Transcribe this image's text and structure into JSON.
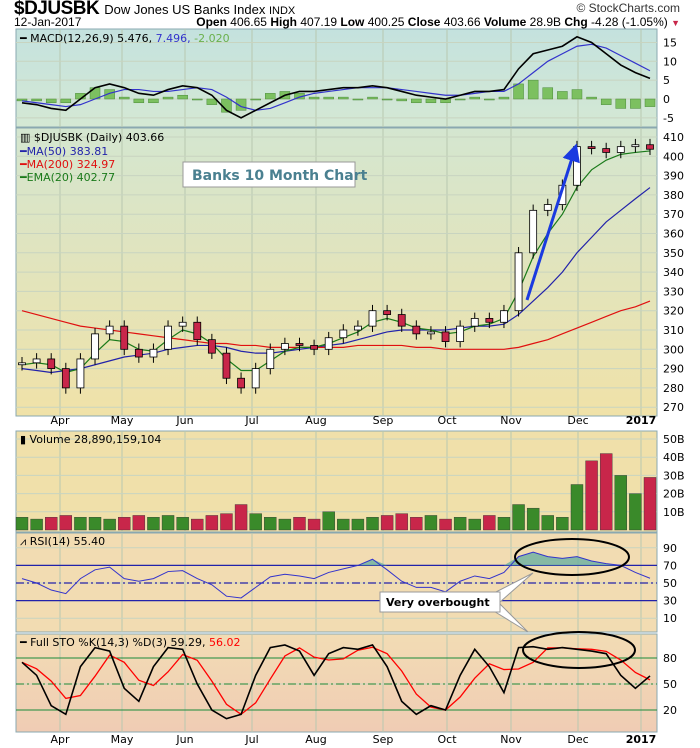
{
  "header": {
    "symbol": "$DJUSBK",
    "name": "Dow Jones US Banks Index",
    "exchange": "INDX",
    "brand": "© StockCharts.com",
    "date": "12-Jan-2017",
    "open_label": "Open",
    "open": "406.65",
    "high_label": "High",
    "high": "407.19",
    "low_label": "Low",
    "low": "400.25",
    "close_label": "Close",
    "close": "403.66",
    "volume_label": "Volume",
    "volume": "28.9B",
    "chg_label": "Chg",
    "chg": "-4.28 (-1.05%)"
  },
  "colors": {
    "up": "#3a8a2a",
    "down": "#c8264a",
    "ma50": "#2222aa",
    "ma200": "#e01010",
    "ema20": "#1a7a1a",
    "macd": "#000000",
    "signal": "#3333cc",
    "rsi": "#3333cc",
    "sto_k": "#000000",
    "sto_d": "#ff0000",
    "arrow": "#1a3ae0",
    "macd_hist": "#7cc060"
  },
  "chart_data": {
    "type": "line",
    "x": [
      "2016-03-18",
      "2016-03-25",
      "2016-04-01",
      "2016-04-08",
      "2016-04-15",
      "2016-04-22",
      "2016-04-29",
      "2016-05-06",
      "2016-05-13",
      "2016-05-20",
      "2016-05-27",
      "2016-06-03",
      "2016-06-10",
      "2016-06-17",
      "2016-06-24",
      "2016-07-01",
      "2016-07-08",
      "2016-07-15",
      "2016-07-22",
      "2016-07-29",
      "2016-08-05",
      "2016-08-12",
      "2016-08-19",
      "2016-08-26",
      "2016-09-02",
      "2016-09-09",
      "2016-09-16",
      "2016-09-23",
      "2016-09-30",
      "2016-10-07",
      "2016-10-14",
      "2016-10-21",
      "2016-10-28",
      "2016-11-04",
      "2016-11-11",
      "2016-11-18",
      "2016-11-25",
      "2016-12-02",
      "2016-12-09",
      "2016-12-16",
      "2016-12-23",
      "2016-12-30",
      "2017-01-06",
      "2017-01-12"
    ],
    "month_labels": [
      "Apr",
      "May",
      "Jun",
      "Jul",
      "Aug",
      "Sep",
      "Oct",
      "Nov",
      "Dec",
      "2017"
    ],
    "annotation_title": "Banks 10 Month Chart",
    "callout": "Very overbought",
    "price": {
      "legend": "$DJUSBK (Daily) 403.66",
      "ylim": [
        265,
        415
      ],
      "ticks": [
        270,
        280,
        290,
        300,
        310,
        320,
        330,
        340,
        350,
        360,
        370,
        380,
        390,
        400,
        410
      ],
      "close": [
        293,
        295,
        290,
        280,
        295,
        308,
        312,
        300,
        296,
        300,
        312,
        314,
        305,
        298,
        285,
        280,
        290,
        300,
        303,
        302,
        300,
        306,
        310,
        312,
        320,
        318,
        312,
        308,
        309,
        304,
        312,
        316,
        314,
        320,
        350,
        372,
        375,
        385,
        405,
        404,
        402,
        405,
        406,
        403.66
      ],
      "series": [
        {
          "name": "MA(50) 383.81",
          "key": "ma50",
          "values": [
            290,
            289,
            288,
            289,
            290,
            292,
            294,
            296,
            297,
            298,
            300,
            301,
            302,
            302,
            301,
            299,
            298,
            298,
            299,
            300,
            301,
            302,
            303,
            305,
            307,
            309,
            310,
            310,
            310,
            310,
            311,
            312,
            312,
            313,
            318,
            325,
            332,
            340,
            350,
            358,
            366,
            372,
            378,
            383.81
          ]
        },
        {
          "name": "MA(200) 324.97",
          "key": "ma200",
          "values": [
            320,
            318,
            316,
            314,
            312,
            311,
            310,
            309,
            308,
            307,
            306,
            305,
            304,
            303,
            303,
            302,
            302,
            301,
            301,
            301,
            301,
            301,
            301,
            302,
            302,
            302,
            302,
            301,
            301,
            300,
            300,
            300,
            300,
            300,
            301,
            303,
            305,
            308,
            311,
            314,
            317,
            320,
            322,
            324.97
          ]
        },
        {
          "name": "EMA(20) 402.77",
          "key": "ema20",
          "values": [
            292,
            293,
            292,
            288,
            290,
            298,
            305,
            304,
            300,
            299,
            305,
            310,
            308,
            303,
            295,
            289,
            289,
            294,
            299,
            301,
            301,
            303,
            306,
            309,
            314,
            316,
            314,
            311,
            310,
            308,
            309,
            312,
            313,
            316,
            330,
            348,
            360,
            370,
            384,
            393,
            398,
            401,
            402,
            402.77
          ]
        }
      ]
    },
    "macd": {
      "legend_name": "MACD(12,26,9) 5.476,",
      "signal_value": "7.496,",
      "hist_value": "-2.020",
      "ylim": [
        -7,
        18
      ],
      "ticks": [
        -5,
        0,
        5,
        10,
        15
      ],
      "macd": [
        -1,
        -1.5,
        -2.5,
        -3,
        0,
        3,
        4,
        3,
        1.5,
        1,
        2.5,
        3.5,
        3,
        1,
        -3,
        -5,
        -3,
        -1,
        1,
        2,
        2,
        2.5,
        3,
        3,
        3.5,
        3,
        2,
        1,
        0.5,
        0,
        1,
        2,
        2,
        2.5,
        8,
        12,
        13,
        14,
        16.5,
        15,
        12,
        9,
        7,
        5.476
      ],
      "signal": [
        -0.5,
        -1,
        -1.5,
        -2,
        -1.5,
        0,
        1.5,
        2.5,
        2.5,
        2,
        2,
        2.5,
        3,
        2.5,
        0.5,
        -2,
        -3,
        -2.5,
        -1,
        0.5,
        1.5,
        2,
        2.5,
        3,
        3,
        3,
        2.5,
        2,
        1.5,
        1,
        1,
        1.5,
        2,
        2,
        4,
        7,
        10,
        12,
        14,
        14.5,
        13.5,
        11.5,
        9.5,
        7.496
      ]
    },
    "volume": {
      "legend": "Volume 28,890,159,104",
      "unit": "B",
      "ticks": [
        10,
        20,
        30,
        40,
        50
      ],
      "values": [
        7,
        6,
        7,
        8,
        7,
        7,
        6,
        7,
        8,
        7,
        8,
        7,
        6,
        8,
        9,
        14,
        9,
        7,
        6,
        7,
        6,
        10,
        6,
        6,
        7,
        8,
        9,
        7,
        8,
        6,
        7,
        6,
        8,
        7,
        14,
        12,
        8,
        7,
        25,
        38,
        42,
        30,
        20,
        28.89
      ]
    },
    "rsi": {
      "legend": "RSI(14) 55.40",
      "ticks": [
        10,
        30,
        50,
        70,
        90
      ],
      "levels": [
        30,
        50,
        70
      ],
      "values": [
        55,
        50,
        42,
        38,
        55,
        65,
        68,
        55,
        52,
        55,
        63,
        64,
        55,
        48,
        35,
        33,
        45,
        57,
        60,
        58,
        55,
        62,
        66,
        70,
        77,
        65,
        52,
        45,
        45,
        40,
        52,
        58,
        55,
        62,
        80,
        85,
        80,
        78,
        80,
        75,
        72,
        70,
        62,
        55.4
      ]
    },
    "sto": {
      "legend_name": "Full STO %K(14,3) %D(3) 59.29,",
      "d_value": "56.02",
      "ticks": [
        20,
        50,
        80
      ],
      "levels": [
        20,
        50,
        80
      ],
      "k": [
        75,
        60,
        25,
        15,
        70,
        92,
        88,
        45,
        30,
        70,
        92,
        90,
        50,
        20,
        10,
        15,
        60,
        92,
        95,
        88,
        60,
        85,
        92,
        90,
        95,
        70,
        30,
        15,
        25,
        20,
        60,
        90,
        70,
        40,
        92,
        93,
        90,
        92,
        90,
        88,
        85,
        60,
        45,
        59.29
      ]
    }
  }
}
